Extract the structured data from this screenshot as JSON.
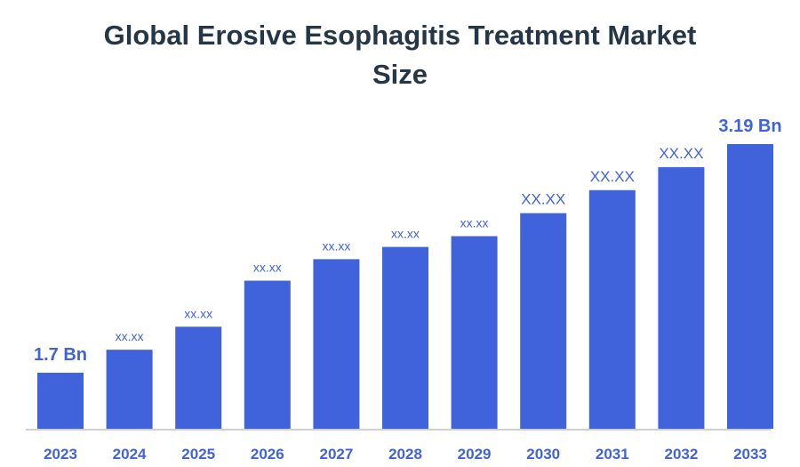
{
  "chart_data": {
    "type": "bar",
    "title_lines": [
      "Global Erosive Esophagitis Treatment Market",
      "Size"
    ],
    "categories": [
      "2023",
      "2024",
      "2025",
      "2026",
      "2027",
      "2028",
      "2029",
      "2030",
      "2031",
      "2032",
      "2033"
    ],
    "values": [
      1.7,
      1.85,
      2.0,
      2.3,
      2.44,
      2.52,
      2.59,
      2.74,
      2.89,
      3.04,
      3.19
    ],
    "data_labels": [
      "1.7 Bn",
      "xx.xx",
      "xx.xx",
      "xx.xx",
      "xx.xx",
      "xx.xx",
      "xx.xx",
      "XX.XX",
      "XX.XX",
      "XX.XX",
      "3.19 Bn"
    ],
    "ylim": [
      1.335,
      3.19
    ],
    "xlabel": "",
    "ylabel": "",
    "grid": false,
    "bar_color": "#4063dc",
    "label_color": "#4063dc",
    "axis_color": "#d0d0d0"
  }
}
